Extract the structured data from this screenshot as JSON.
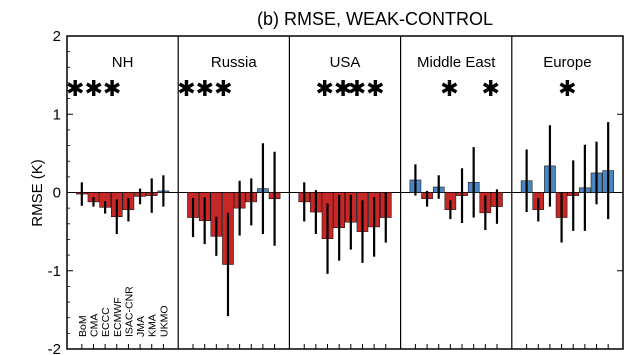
{
  "chart_data": {
    "type": "bar",
    "title": "(b) RMSE, WEAK-CONTROL",
    "ylabel": "RMSE (K)",
    "ylim": [
      -2,
      2
    ],
    "yticks": [
      "2",
      "1",
      "0",
      "-1",
      "-2"
    ],
    "categories": [
      "BoM",
      "CMA",
      "ECCC",
      "ECMWF",
      "ISAC-CNR",
      "JMA",
      "KMA",
      "UKMO"
    ],
    "colors": {
      "negative": "#c62828",
      "positive": "#4a86c2"
    },
    "panels": [
      {
        "name": "NH",
        "values": [
          -0.02,
          -0.12,
          -0.19,
          -0.31,
          -0.22,
          -0.05,
          -0.04,
          0.02
        ],
        "err": [
          0.15,
          0.06,
          0.08,
          0.22,
          0.15,
          0.1,
          0.22,
          0.2
        ],
        "stars": [
          "✱✱✱"
        ]
      },
      {
        "name": "Russia",
        "values": [
          -0.32,
          -0.36,
          -0.56,
          -0.92,
          -0.2,
          -0.12,
          0.05,
          -0.08
        ],
        "err": [
          0.25,
          0.3,
          0.25,
          0.66,
          0.35,
          0.3,
          0.58,
          0.6
        ],
        "stars": [
          "✱✱✱"
        ]
      },
      {
        "name": "USA",
        "values": [
          -0.12,
          -0.25,
          -0.59,
          -0.45,
          -0.38,
          -0.5,
          -0.44,
          -0.32
        ],
        "err": [
          0.25,
          0.28,
          0.45,
          0.42,
          0.35,
          0.4,
          0.38,
          0.32
        ],
        "stars": [
          "✱✱",
          "✱✱"
        ]
      },
      {
        "name": "Middle East",
        "values": [
          0.16,
          -0.08,
          0.07,
          -0.22,
          -0.04,
          0.13,
          -0.26,
          -0.18
        ],
        "err": [
          0.2,
          0.1,
          0.15,
          0.12,
          0.35,
          0.45,
          0.22,
          0.22
        ],
        "stars": [
          "✱",
          "✱"
        ]
      },
      {
        "name": "Europe",
        "values": [
          0.15,
          -0.22,
          0.34,
          -0.32,
          -0.04,
          0.06,
          0.25,
          0.28
        ],
        "err": [
          0.4,
          0.15,
          0.52,
          0.32,
          0.45,
          0.55,
          0.4,
          0.62
        ],
        "stars": [
          "✱"
        ]
      }
    ]
  }
}
